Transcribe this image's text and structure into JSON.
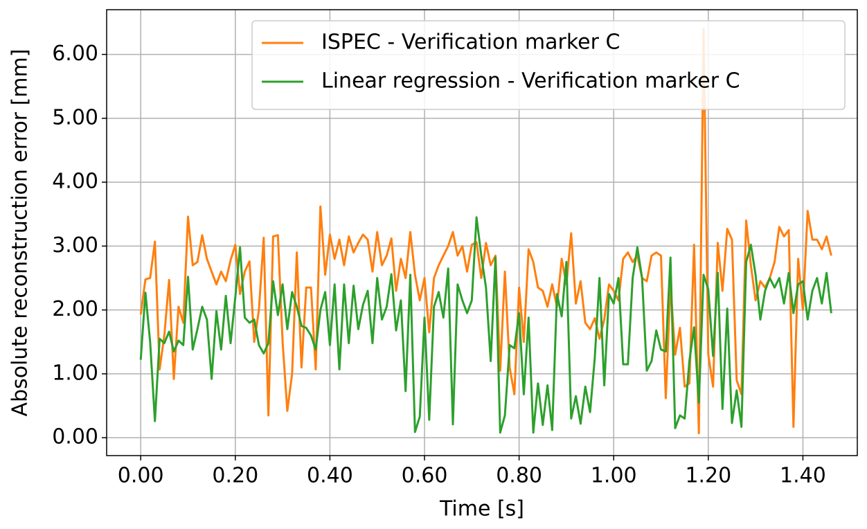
{
  "chart_data": {
    "type": "line",
    "x_label": "Time [s]",
    "y_label": "Absolute reconstruction error [mm]",
    "x": [
      0,
      0.01,
      0.02,
      0.03,
      0.04,
      0.05,
      0.06,
      0.07,
      0.08,
      0.09,
      0.1,
      0.11,
      0.12,
      0.13,
      0.14,
      0.15,
      0.16,
      0.17,
      0.18,
      0.19,
      0.2,
      0.21,
      0.22,
      0.23,
      0.24,
      0.25,
      0.26,
      0.27,
      0.28,
      0.29,
      0.3,
      0.31,
      0.32,
      0.33,
      0.34,
      0.35,
      0.36,
      0.37,
      0.38,
      0.39,
      0.4,
      0.41,
      0.42,
      0.43,
      0.44,
      0.45,
      0.46,
      0.47,
      0.48,
      0.49,
      0.5,
      0.51,
      0.52,
      0.53,
      0.54,
      0.55,
      0.56,
      0.57,
      0.58,
      0.59,
      0.6,
      0.61,
      0.62,
      0.63,
      0.64,
      0.65,
      0.66,
      0.67,
      0.68,
      0.69,
      0.7,
      0.71,
      0.72,
      0.73,
      0.74,
      0.75,
      0.76,
      0.77,
      0.78,
      0.79,
      0.8,
      0.81,
      0.82,
      0.83,
      0.84,
      0.85,
      0.86,
      0.87,
      0.88,
      0.89,
      0.9,
      0.91,
      0.92,
      0.93,
      0.94,
      0.95,
      0.96,
      0.97,
      0.98,
      0.99,
      1,
      1.01,
      1.02,
      1.03,
      1.04,
      1.05,
      1.06,
      1.07,
      1.08,
      1.09,
      1.1,
      1.11,
      1.12,
      1.13,
      1.14,
      1.15,
      1.16,
      1.17,
      1.18,
      1.19,
      1.2,
      1.21,
      1.22,
      1.23,
      1.24,
      1.25,
      1.26,
      1.27,
      1.28,
      1.29,
      1.3,
      1.31,
      1.32,
      1.33,
      1.34,
      1.35,
      1.36,
      1.37,
      1.38,
      1.39,
      1.4,
      1.41,
      1.42,
      1.43,
      1.44,
      1.45,
      1.46
    ],
    "series": [
      {
        "name": "ISPEC - Verification marker C",
        "color": "#ff7f0e",
        "values": [
          1.93,
          2.48,
          2.5,
          3.07,
          1.07,
          1.6,
          2.47,
          0.92,
          2.05,
          1.8,
          3.46,
          2.7,
          2.75,
          3.17,
          2.8,
          2.6,
          2.4,
          2.6,
          2.45,
          2.78,
          3.02,
          2.25,
          2.6,
          2.76,
          1.5,
          2.0,
          3.13,
          0.35,
          3.15,
          3.17,
          1.5,
          0.42,
          1.0,
          2.9,
          1.1,
          2.35,
          2.35,
          1.07,
          3.62,
          2.55,
          3.18,
          2.8,
          3.1,
          2.7,
          3.15,
          2.9,
          3.05,
          3.18,
          3.1,
          2.6,
          3.22,
          2.7,
          2.85,
          3.12,
          2.3,
          2.8,
          2.5,
          3.22,
          2.55,
          2.15,
          2.5,
          1.65,
          2.5,
          2.7,
          2.85,
          3.0,
          3.22,
          2.85,
          3.0,
          2.6,
          3.02,
          3.06,
          2.5,
          3.05,
          2.7,
          2.85,
          1.05,
          2.6,
          1.1,
          0.68,
          2.35,
          1.5,
          2.95,
          2.75,
          2.35,
          2.3,
          2.05,
          2.4,
          2.05,
          2.8,
          2.4,
          3.2,
          2.1,
          2.45,
          1.8,
          1.7,
          1.87,
          1.55,
          1.85,
          2.4,
          2.3,
          2.15,
          2.8,
          2.9,
          2.75,
          2.85,
          2.5,
          2.45,
          2.85,
          2.9,
          2.85,
          0.62,
          2.4,
          1.3,
          1.72,
          0.8,
          0.85,
          3.02,
          0.07,
          6.4,
          1.3,
          0.8,
          3.05,
          2.3,
          3.27,
          3.1,
          0.9,
          0.68,
          3.4,
          2.7,
          2.15,
          2.45,
          2.35,
          2.5,
          2.75,
          3.3,
          3.15,
          3.25,
          0.17,
          2.8,
          2.0,
          3.55,
          3.1,
          3.1,
          2.95,
          3.15,
          2.85
        ]
      },
      {
        "name": "Linear regression - Verification marker C",
        "color": "#2ca02c",
        "values": [
          1.22,
          2.27,
          1.5,
          0.26,
          1.55,
          1.48,
          1.66,
          1.35,
          1.52,
          1.45,
          2.52,
          1.38,
          1.7,
          2.05,
          1.85,
          0.92,
          1.98,
          1.38,
          2.22,
          1.48,
          2.2,
          2.98,
          1.88,
          1.8,
          1.85,
          1.45,
          1.32,
          1.48,
          2.45,
          1.92,
          2.4,
          1.7,
          2.28,
          2.05,
          1.75,
          1.72,
          1.6,
          1.38,
          2.0,
          2.28,
          1.45,
          2.4,
          1.07,
          2.4,
          1.48,
          2.38,
          1.7,
          2.08,
          2.3,
          1.48,
          2.5,
          1.85,
          2.05,
          2.56,
          1.68,
          2.15,
          0.73,
          2.55,
          0.09,
          0.33,
          1.88,
          0.28,
          2.05,
          2.28,
          1.88,
          2.65,
          0.21,
          2.4,
          2.15,
          1.95,
          2.15,
          3.45,
          2.85,
          2.35,
          1.2,
          2.82,
          0.08,
          0.35,
          1.45,
          1.4,
          1.95,
          0.68,
          1.88,
          0.08,
          0.85,
          0.2,
          0.82,
          0.12,
          2.25,
          1.9,
          2.75,
          0.3,
          0.65,
          0.22,
          0.8,
          0.4,
          1.25,
          2.5,
          0.82,
          2.25,
          2.1,
          2.5,
          1.15,
          1.15,
          2.5,
          2.98,
          2.5,
          1.05,
          1.2,
          1.68,
          1.38,
          1.35,
          2.82,
          0.15,
          0.35,
          0.3,
          1.2,
          1.73,
          0.55,
          2.55,
          2.32,
          1.28,
          2.58,
          0.45,
          2.02,
          0.23,
          0.74,
          0.17,
          2.75,
          3.02,
          2.55,
          1.85,
          2.3,
          2.5,
          2.35,
          2.5,
          2.1,
          2.58,
          1.95,
          2.4,
          2.45,
          1.85,
          2.3,
          2.5,
          2.1,
          2.58,
          1.95
        ]
      }
    ],
    "xlim": [
      -0.072,
      1.515
    ],
    "ylim": [
      -0.28,
      6.7
    ],
    "xticks": [
      {
        "value": 0,
        "label": "0.00"
      },
      {
        "value": 0.2,
        "label": "0.20"
      },
      {
        "value": 0.4,
        "label": "0.40"
      },
      {
        "value": 0.6,
        "label": "0.60"
      },
      {
        "value": 0.8,
        "label": "0.80"
      },
      {
        "value": 1.0,
        "label": "1.00"
      },
      {
        "value": 1.2,
        "label": "1.20"
      },
      {
        "value": 1.4,
        "label": "1.40"
      }
    ],
    "yticks": [
      {
        "value": 0,
        "label": "0.00"
      },
      {
        "value": 1,
        "label": "1.00"
      },
      {
        "value": 2,
        "label": "2.00"
      },
      {
        "value": 3,
        "label": "3.00"
      },
      {
        "value": 4,
        "label": "4.00"
      },
      {
        "value": 5,
        "label": "5.00"
      },
      {
        "value": 6,
        "label": "6.00"
      }
    ],
    "grid": true,
    "legend": "upper right"
  }
}
